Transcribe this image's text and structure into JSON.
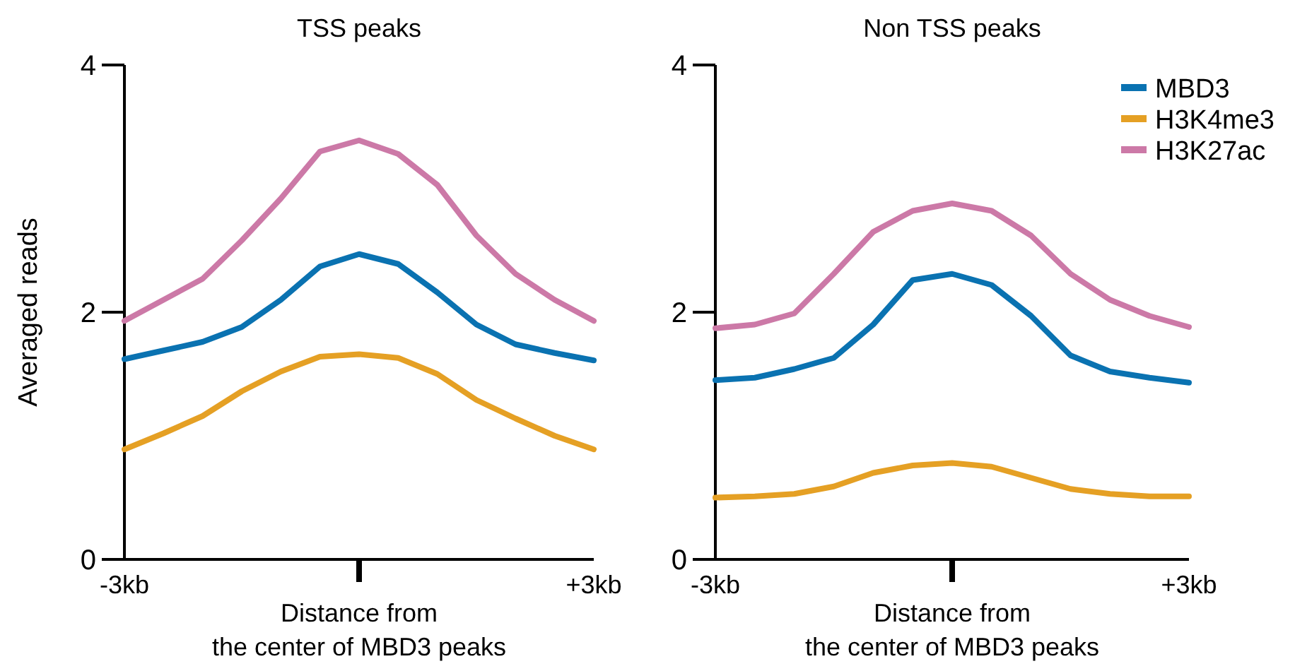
{
  "chart_data": [
    {
      "type": "line",
      "title": "TSS peaks",
      "xlabel": "Distance from\nthe center of MBD3 peaks",
      "ylabel": "Averaged reads",
      "x": [
        -3,
        -2.5,
        -2,
        -1.5,
        -1,
        -0.5,
        0,
        0.5,
        1,
        1.5,
        2,
        2.5,
        3
      ],
      "xlim": [
        -3,
        3
      ],
      "xticks": [
        {
          "value": -3,
          "label": "-3kb"
        },
        {
          "value": 0,
          "label": null
        },
        {
          "value": 3,
          "label": "+3kb"
        }
      ],
      "ylim": [
        0,
        4
      ],
      "yticks": [
        0,
        2,
        4
      ],
      "grid": false,
      "legend": false,
      "line_style": "solid",
      "series": [
        {
          "color": "#0a72b1",
          "values": [
            1.62,
            1.69,
            1.76,
            1.88,
            2.1,
            2.37,
            2.47,
            2.39,
            2.16,
            1.9,
            1.74,
            1.67,
            1.61
          ]
        },
        {
          "color": "#e5a024",
          "values": [
            0.89,
            1.02,
            1.16,
            1.36,
            1.52,
            1.64,
            1.66,
            1.63,
            1.5,
            1.29,
            1.14,
            1.0,
            0.89
          ]
        },
        {
          "color": "#cc79a7",
          "values": [
            1.93,
            2.1,
            2.27,
            2.58,
            2.92,
            3.3,
            3.39,
            3.28,
            3.03,
            2.62,
            2.31,
            2.1,
            1.93
          ]
        }
      ]
    },
    {
      "type": "line",
      "title": "Non TSS peaks",
      "xlabel": "Distance from\nthe center of MBD3 peaks",
      "x": [
        -3,
        -2.5,
        -2,
        -1.5,
        -1,
        -0.5,
        0,
        0.5,
        1,
        1.5,
        2,
        2.5,
        3
      ],
      "xlim": [
        -3,
        3
      ],
      "xticks": [
        {
          "value": -3,
          "label": "-3kb"
        },
        {
          "value": 0,
          "label": null
        },
        {
          "value": 3,
          "label": "+3kb"
        }
      ],
      "ylim": [
        0,
        4
      ],
      "yticks": [
        0,
        2,
        4
      ],
      "grid": false,
      "legend": "top right",
      "line_style": "solid",
      "series": [
        {
          "name": "MBD3",
          "color": "#0a72b1",
          "values": [
            1.45,
            1.47,
            1.54,
            1.63,
            1.9,
            2.26,
            2.31,
            2.22,
            1.97,
            1.65,
            1.52,
            1.47,
            1.43
          ]
        },
        {
          "name": "H3K4me3",
          "color": "#e5a024",
          "values": [
            0.5,
            0.51,
            0.53,
            0.59,
            0.7,
            0.76,
            0.78,
            0.75,
            0.66,
            0.57,
            0.53,
            0.51,
            0.51
          ]
        },
        {
          "name": "H3K27ac",
          "color": "#cc79a7",
          "values": [
            1.87,
            1.9,
            1.99,
            2.31,
            2.65,
            2.82,
            2.88,
            2.82,
            2.62,
            2.31,
            2.1,
            1.97,
            1.88
          ]
        }
      ]
    }
  ]
}
